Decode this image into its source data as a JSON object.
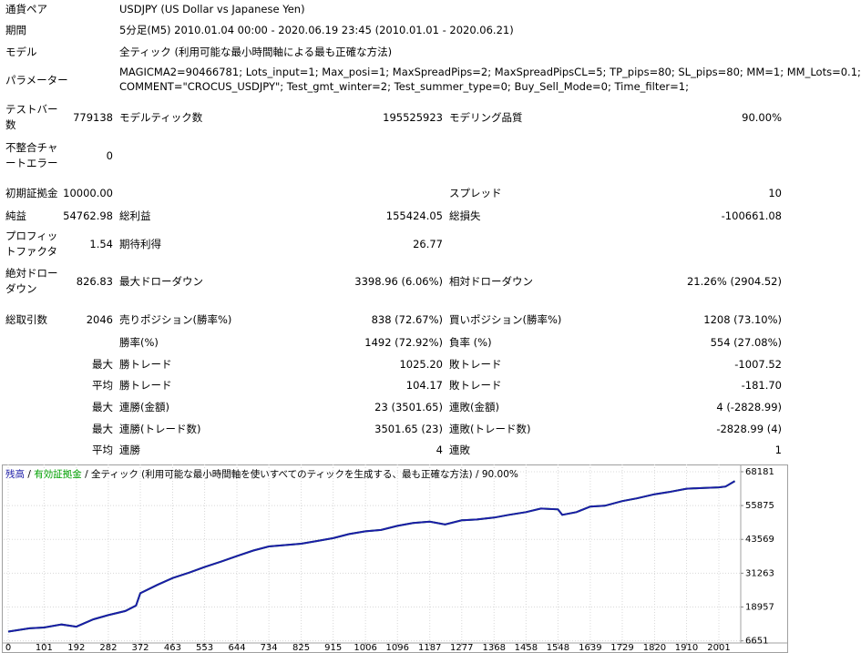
{
  "header": [
    [
      "通貨ペア",
      "USDJPY (US Dollar vs Japanese Yen)"
    ],
    [
      "期間",
      "5分足(M5) 2010.01.04 00:00 - 2020.06.19 23:45 (2010.01.01 - 2020.06.21)"
    ],
    [
      "モデル",
      "全ティック (利用可能な最小時間軸による最も正確な方法)"
    ],
    [
      "パラメーター",
      "MAGICMA2=90466781; Lots_input=1; Max_posi=1; MaxSpreadPips=2; MaxSpreadPipsCL=5; TP_pips=80; SL_pips=80; MM=1; MM_Lots=0.1;",
      "COMMENT=\"CROCUS_USDJPY\"; Test_gmt_winter=2; Test_summer_type=0; Buy_Sell_Mode=0; Time_filter=1;"
    ]
  ],
  "stats": [
    [
      "テストバー数",
      "779138",
      "モデルティック数",
      "195525923",
      "モデリング品質",
      "90.00%"
    ],
    [
      "不整合チャートエラー",
      "0",
      null,
      null,
      null,
      null
    ],
    [
      "初期証拠金",
      "10000.00",
      null,
      null,
      "スプレッド",
      "10"
    ],
    [
      "純益",
      "54762.98",
      "総利益",
      "155424.05",
      "総損失",
      "-100661.08"
    ],
    [
      "プロフィットファクタ",
      "1.54",
      "期待利得",
      "26.77",
      null,
      null
    ],
    [
      "絶対ドローダウン",
      "826.83",
      "最大ドローダウン",
      "3398.96 (6.06%)",
      "相対ドローダウン",
      "21.26% (2904.52)"
    ],
    [
      "総取引数",
      "2046",
      "売りポジション(勝率%)",
      "838 (72.67%)",
      "買いポジション(勝率%)",
      "1208 (73.10%)"
    ],
    [
      null,
      null,
      "勝率(%)",
      "1492 (72.92%)",
      "負率 (%)",
      "554 (27.08%)"
    ],
    [
      null,
      "最大",
      "勝トレード",
      "1025.20",
      "敗トレード",
      "-1007.52"
    ],
    [
      null,
      "平均",
      "勝トレード",
      "104.17",
      "敗トレード",
      "-181.70"
    ],
    [
      null,
      "最大",
      "連勝(金額)",
      "23 (3501.65)",
      "連敗(金額)",
      "4 (-2828.99)"
    ],
    [
      null,
      "最大",
      "連勝(トレード数)",
      "3501.65 (23)",
      "連敗(トレード数)",
      "-2828.99 (4)"
    ],
    [
      null,
      "平均",
      "連勝",
      "4",
      "連敗",
      "1"
    ]
  ],
  "chart_data": {
    "type": "line",
    "subtitle": "全ティック (利用可能な最小時間軸を使いすべてのティックを生成する、最も正確な方法)",
    "quality": "90.00%",
    "legend_separator": "/",
    "x": [
      0,
      60,
      101,
      150,
      192,
      240,
      282,
      330,
      360,
      372,
      420,
      463,
      510,
      553,
      600,
      644,
      690,
      734,
      780,
      825,
      870,
      915,
      960,
      1006,
      1050,
      1096,
      1140,
      1187,
      1230,
      1277,
      1320,
      1368,
      1410,
      1458,
      1500,
      1548,
      1560,
      1600,
      1639,
      1680,
      1729,
      1770,
      1820,
      1860,
      1910,
      1960,
      2001,
      2020,
      2046
    ],
    "series": [
      {
        "name": "有効証拠金",
        "color": "#00a000",
        "values": [
          10000,
          11200,
          11500,
          12600,
          11800,
          14500,
          16000,
          17500,
          19500,
          24000,
          27000,
          29500,
          31500,
          33500,
          35500,
          37500,
          39500,
          41000,
          41500,
          42000,
          43000,
          44000,
          45500,
          46500,
          47000,
          48500,
          49500,
          50000,
          49000,
          50500,
          50800,
          51500,
          52500,
          53500,
          54800,
          54500,
          52500,
          53500,
          55500,
          55800,
          57500,
          58500,
          60000,
          60800,
          62000,
          62300,
          62500,
          62800,
          64763
        ]
      },
      {
        "name": "残高",
        "color": "#1c1ca8",
        "values": [
          10000,
          11200,
          11500,
          12600,
          11800,
          14500,
          16000,
          17500,
          19500,
          24000,
          27000,
          29500,
          31500,
          33500,
          35500,
          37500,
          39500,
          41000,
          41500,
          42000,
          43000,
          44000,
          45500,
          46500,
          47000,
          48500,
          49500,
          50000,
          49000,
          50500,
          50800,
          51500,
          52500,
          53500,
          54800,
          54500,
          52500,
          53500,
          55500,
          55800,
          57500,
          58500,
          60000,
          60800,
          62000,
          62300,
          62500,
          62800,
          64763
        ]
      }
    ],
    "xlim": [
      0,
      2060
    ],
    "ylim": [
      6200,
      69500
    ],
    "xticks": [
      0,
      101,
      192,
      282,
      372,
      463,
      553,
      644,
      734,
      825,
      915,
      1006,
      1096,
      1187,
      1277,
      1368,
      1458,
      1548,
      1639,
      1729,
      1820,
      1910,
      2001
    ],
    "yticks": [
      6651,
      18957,
      31263,
      43569,
      55875,
      68181
    ],
    "grid": true
  }
}
